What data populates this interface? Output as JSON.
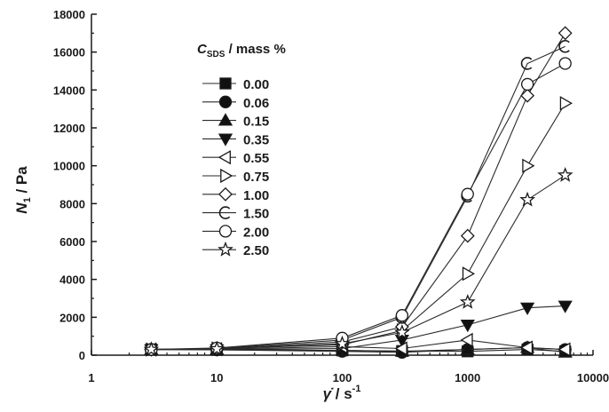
{
  "chart_data": {
    "type": "line",
    "x_scale": "log",
    "xlim": [
      1,
      10000
    ],
    "ylim": [
      0,
      18000
    ],
    "x_ticks": [
      1,
      10,
      100,
      1000,
      10000
    ],
    "x_tick_labels": [
      "1",
      "10",
      "100",
      "1000",
      "10000"
    ],
    "y_ticks": [
      0,
      2000,
      4000,
      6000,
      8000,
      10000,
      12000,
      14000,
      16000,
      18000
    ],
    "y_tick_labels": [
      "0",
      "2000",
      "4000",
      "6000",
      "8000",
      "10000",
      "12000",
      "14000",
      "16000",
      "18000"
    ],
    "xlabel": {
      "main": "γ̇",
      "sep": " / s",
      "sup": "-1"
    },
    "ylabel": {
      "main": "N",
      "sub": "1",
      "rest": " / Pa"
    },
    "legend_title": {
      "main": "C",
      "sub": "SDS",
      "rest": " / mass %"
    },
    "legend_placement": "upper-left",
    "x": [
      1,
      3,
      10,
      100,
      300,
      1000,
      3000,
      6000
    ],
    "series": [
      {
        "name": "0.00",
        "marker": "square-filled",
        "values": [
          null,
          300,
          280,
          250,
          220,
          200,
          300,
          200
        ]
      },
      {
        "name": "0.06",
        "marker": "circle-filled",
        "values": [
          null,
          300,
          280,
          200,
          150,
          300,
          400,
          300
        ]
      },
      {
        "name": "0.15",
        "marker": "triangle-up-filled",
        "values": [
          null,
          300,
          300,
          250,
          200,
          300,
          400,
          150
        ]
      },
      {
        "name": "0.35",
        "marker": "triangle-down-filled",
        "values": [
          null,
          300,
          300,
          350,
          800,
          1600,
          2500,
          2600
        ]
      },
      {
        "name": "0.55",
        "marker": "triangle-left-open",
        "values": [
          null,
          300,
          320,
          450,
          350,
          800,
          400,
          300
        ]
      },
      {
        "name": "0.75",
        "marker": "triangle-right-open",
        "values": [
          null,
          300,
          350,
          550,
          1300,
          4300,
          10000,
          13300
        ]
      },
      {
        "name": "1.00",
        "marker": "diamond-open",
        "values": [
          null,
          300,
          330,
          700,
          1500,
          6300,
          13700,
          17000
        ]
      },
      {
        "name": "1.50",
        "marker": "c-open",
        "values": [
          null,
          300,
          350,
          800,
          2000,
          8400,
          15400,
          16300
        ]
      },
      {
        "name": "2.00",
        "marker": "circle-open",
        "values": [
          null,
          300,
          380,
          900,
          2100,
          8500,
          14300,
          15400
        ]
      },
      {
        "name": "2.50",
        "marker": "star-open",
        "values": [
          null,
          300,
          330,
          600,
          1200,
          2800,
          8200,
          9500
        ]
      }
    ]
  }
}
